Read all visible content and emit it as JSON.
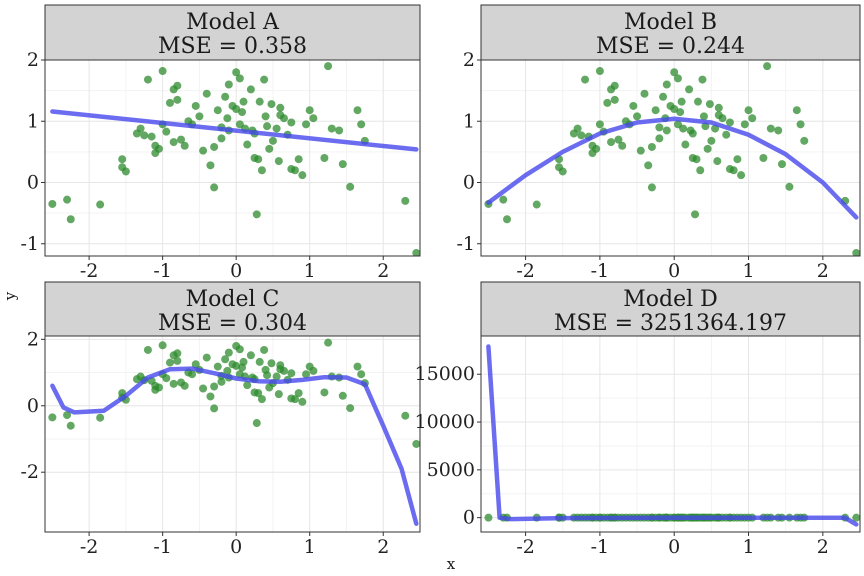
{
  "axis_labels": {
    "x": "x",
    "y": "y"
  },
  "colors": {
    "points": "#2e8b2e",
    "fit_line": "#4747ee",
    "strip_bg": "#d3d3d3",
    "panel_border": "#333333",
    "grid_major": "#e6e6e6",
    "grid_minor": "#f3f3f3"
  },
  "chart_data": [
    {
      "type": "scatter",
      "title": "Model A",
      "subtitle": "MSE = 0.358",
      "xlim": [
        -2.6,
        2.5
      ],
      "ylim": [
        -1.2,
        2.0
      ],
      "x_ticks": [
        -2,
        -1,
        0,
        1,
        2
      ],
      "x_tick_labels": [
        "-2",
        "-1",
        "0",
        "1",
        "2"
      ],
      "y_ticks": [
        -1,
        0,
        1,
        2
      ],
      "y_tick_labels": [
        "-1",
        "0",
        "1",
        "2"
      ],
      "show_x_tick_labels": true,
      "fit_line": {
        "x": [
          -2.5,
          2.45
        ],
        "y": [
          1.16,
          0.54
        ]
      }
    },
    {
      "type": "scatter",
      "title": "Model B",
      "subtitle": "MSE = 0.244",
      "xlim": [
        -2.6,
        2.5
      ],
      "ylim": [
        -1.2,
        2.0
      ],
      "x_ticks": [
        -2,
        -1,
        0,
        1,
        2
      ],
      "x_tick_labels": [
        "-2",
        "-1",
        "0",
        "1",
        "2"
      ],
      "y_ticks": [
        -1,
        0,
        1,
        2
      ],
      "y_tick_labels": [
        "-1",
        "0",
        "1",
        "2"
      ],
      "show_x_tick_labels": true,
      "fit_line": {
        "x": [
          -2.5,
          -2.0,
          -1.5,
          -1.0,
          -0.5,
          0.0,
          0.5,
          1.0,
          1.5,
          2.0,
          2.45
        ],
        "y": [
          -0.33,
          0.12,
          0.5,
          0.8,
          0.98,
          1.04,
          0.98,
          0.78,
          0.46,
          0.0,
          -0.57
        ]
      }
    },
    {
      "type": "scatter",
      "title": "Model C",
      "subtitle": "MSE = 0.304",
      "xlim": [
        -2.6,
        2.5
      ],
      "ylim": [
        -3.8,
        2.1
      ],
      "x_ticks": [
        -2,
        -1,
        0,
        1,
        2
      ],
      "x_tick_labels": [
        "-2",
        "-1",
        "0",
        "1",
        "2"
      ],
      "y_ticks": [
        -2,
        0,
        2
      ],
      "y_tick_labels": [
        "-2",
        "0",
        "2"
      ],
      "show_x_tick_labels": true,
      "fit_line": {
        "x": [
          -2.5,
          -2.35,
          -2.2,
          -1.8,
          -1.5,
          -1.2,
          -0.9,
          -0.6,
          -0.3,
          0.0,
          0.3,
          0.6,
          0.9,
          1.2,
          1.5,
          1.75,
          2.0,
          2.25,
          2.45
        ],
        "y": [
          0.6,
          -0.05,
          -0.2,
          -0.15,
          0.3,
          0.85,
          1.1,
          1.12,
          0.98,
          0.82,
          0.74,
          0.72,
          0.78,
          0.86,
          0.85,
          0.65,
          -0.6,
          -1.9,
          -3.55
        ]
      }
    },
    {
      "type": "scatter",
      "title": "Model D",
      "subtitle": "MSE = 3251364.197",
      "xlim": [
        -2.6,
        2.5
      ],
      "ylim": [
        -1500,
        19000
      ],
      "x_ticks": [
        -2,
        -1,
        0,
        1,
        2
      ],
      "x_tick_labels": [
        "-2",
        "-1",
        "0",
        "1",
        "2"
      ],
      "y_ticks": [
        0,
        5000,
        10000,
        15000
      ],
      "y_tick_labels": [
        "0",
        "5000",
        "10000",
        "15000"
      ],
      "show_x_tick_labels": true,
      "fit_line": {
        "x": [
          -2.5,
          -2.35,
          -2.2,
          -1.5,
          0.0,
          1.5,
          2.3,
          2.45
        ],
        "y": [
          17900,
          0,
          -150,
          -50,
          0,
          0,
          -20,
          -700
        ]
      }
    }
  ],
  "points": {
    "x": [
      -2.5,
      -2.3,
      -2.25,
      -1.85,
      -1.55,
      -1.55,
      -1.5,
      -1.35,
      -1.3,
      -1.25,
      -1.2,
      -1.15,
      -1.1,
      -1.1,
      -1.05,
      -1.0,
      -1.0,
      -0.95,
      -0.9,
      -0.85,
      -0.85,
      -0.8,
      -0.8,
      -0.75,
      -0.7,
      -0.65,
      -0.6,
      -0.55,
      -0.5,
      -0.45,
      -0.4,
      -0.35,
      -0.3,
      -0.25,
      -0.2,
      -0.2,
      -0.15,
      -0.12,
      -0.1,
      -0.05,
      0.0,
      0.0,
      0.05,
      0.05,
      0.08,
      0.1,
      0.12,
      0.15,
      0.2,
      0.22,
      0.25,
      0.28,
      0.3,
      0.32,
      0.35,
      0.38,
      0.4,
      0.42,
      0.45,
      0.48,
      0.5,
      0.55,
      0.58,
      0.6,
      0.65,
      0.7,
      0.75,
      0.8,
      0.85,
      0.9,
      0.95,
      1.0,
      1.05,
      1.2,
      1.25,
      1.3,
      1.4,
      1.45,
      1.55,
      1.65,
      1.7,
      1.75,
      2.3,
      2.45,
      -0.3,
      -0.1,
      0.25,
      0.6,
      0.75
    ],
    "y": [
      -0.35,
      -0.28,
      -0.6,
      -0.36,
      0.38,
      0.25,
      0.18,
      0.8,
      0.88,
      0.77,
      1.68,
      0.75,
      0.48,
      0.6,
      0.55,
      1.82,
      0.95,
      0.83,
      1.3,
      1.52,
      0.66,
      1.58,
      1.35,
      0.7,
      0.6,
      1.0,
      0.95,
      1.25,
      1.08,
      0.52,
      1.45,
      0.28,
      -0.08,
      1.18,
      0.9,
      0.72,
      1.4,
      1.05,
      0.85,
      1.25,
      1.8,
      1.2,
      0.95,
      1.7,
      1.15,
      1.32,
      0.88,
      0.62,
      1.52,
      0.85,
      0.8,
      -0.52,
      0.38,
      1.32,
      0.2,
      1.68,
      1.08,
      0.92,
      0.55,
      1.28,
      0.68,
      0.88,
      0.35,
      1.1,
      1.05,
      0.78,
      0.22,
      0.2,
      0.38,
      0.12,
      0.95,
      1.18,
      1.05,
      0.4,
      1.9,
      0.88,
      0.85,
      0.3,
      -0.07,
      1.18,
      0.95,
      0.68,
      -0.3,
      -1.15,
      0.58,
      1.6,
      0.4,
      1.22,
      0.98
    ]
  }
}
